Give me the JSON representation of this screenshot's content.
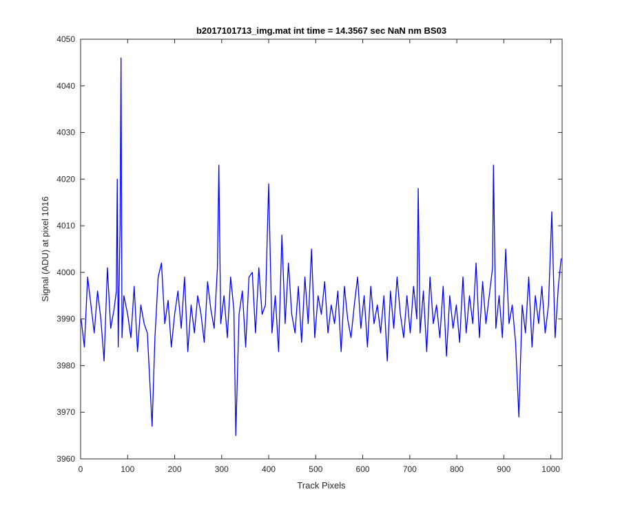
{
  "chart_data": {
    "type": "line",
    "title": "b2017101713_img.mat int time = 14.3567 sec  NaN nm BS03",
    "xlabel": "Track Pixels",
    "ylabel": "Signal (ADU) at pixel 1016",
    "xlim": [
      0,
      1024
    ],
    "ylim": [
      3960,
      4050
    ],
    "xticks": [
      0,
      100,
      200,
      300,
      400,
      500,
      600,
      700,
      800,
      900,
      1000
    ],
    "yticks": [
      3960,
      3970,
      3980,
      3990,
      4000,
      4010,
      4020,
      4030,
      4040,
      4050
    ],
    "xtick_labels": [
      "0",
      "100",
      "200",
      "300",
      "400",
      "500",
      "600",
      "700",
      "800",
      "900",
      "1000"
    ],
    "ytick_labels": [
      "3960",
      "3970",
      "3980",
      "3990",
      "4000",
      "4010",
      "4020",
      "4030",
      "4040",
      "4050"
    ],
    "grid": false,
    "series": [
      {
        "color": "#0000ff",
        "x": [
          1,
          8,
          15,
          22,
          29,
          36,
          43,
          50,
          57,
          64,
          71,
          76,
          78,
          80,
          84,
          86,
          88,
          92,
          100,
          107,
          114,
          121,
          128,
          135,
          142,
          149,
          152,
          158,
          165,
          172,
          179,
          186,
          193,
          200,
          207,
          214,
          221,
          228,
          235,
          242,
          249,
          256,
          263,
          270,
          277,
          284,
          291,
          294,
          298,
          305,
          312,
          319,
          326,
          330,
          337,
          344,
          351,
          358,
          365,
          372,
          379,
          386,
          393,
          400,
          407,
          414,
          421,
          428,
          435,
          442,
          449,
          456,
          463,
          470,
          477,
          484,
          491,
          498,
          505,
          512,
          519,
          526,
          533,
          540,
          547,
          554,
          561,
          568,
          575,
          582,
          589,
          596,
          603,
          610,
          617,
          624,
          631,
          638,
          645,
          652,
          659,
          666,
          673,
          680,
          687,
          694,
          701,
          708,
          715,
          718,
          722,
          729,
          736,
          743,
          750,
          757,
          764,
          771,
          778,
          785,
          792,
          799,
          806,
          813,
          820,
          827,
          834,
          841,
          848,
          855,
          862,
          869,
          876,
          878,
          883,
          890,
          897,
          904,
          911,
          918,
          925,
          932,
          939,
          946,
          953,
          960,
          967,
          974,
          981,
          988,
          995,
          1002,
          1009,
          1016,
          1022
        ],
        "y": [
          3990,
          3984,
          3999,
          3993,
          3987,
          3996,
          3990,
          3981,
          4001,
          3988,
          3992,
          3996,
          4020,
          3984,
          4010,
          4046,
          3986,
          3995,
          3991,
          3986,
          3997,
          3983,
          3993,
          3989,
          3987,
          3973,
          3967,
          3986,
          3999,
          4002,
          3989,
          3994,
          3984,
          3991,
          3996,
          3988,
          3999,
          3983,
          3993,
          3987,
          3995,
          3991,
          3985,
          3998,
          3992,
          3988,
          4001,
          4023,
          3989,
          3995,
          3986,
          3999,
          3992,
          3965,
          3991,
          3996,
          3984,
          3999,
          4000,
          3987,
          4001,
          3991,
          3993,
          4019,
          3987,
          3995,
          3983,
          4008,
          3989,
          4002,
          3991,
          3987,
          3997,
          3985,
          3999,
          3989,
          4005,
          3986,
          3995,
          3991,
          3998,
          3987,
          3993,
          3989,
          3996,
          3983,
          3997,
          3990,
          3986,
          3993,
          3999,
          3988,
          3995,
          3984,
          3997,
          3989,
          3993,
          3987,
          3995,
          3981,
          3996,
          3988,
          3999,
          3991,
          3986,
          3995,
          3987,
          3997,
          3990,
          4018,
          3987,
          3996,
          3983,
          3999,
          3989,
          3993,
          3986,
          3997,
          3982,
          3995,
          3988,
          3993,
          3985,
          3999,
          3987,
          3995,
          3989,
          4002,
          3986,
          3998,
          3989,
          3995,
          4001,
          4023,
          3988,
          3995,
          3986,
          4005,
          3989,
          3993,
          3985,
          3969,
          3993,
          3987,
          3999,
          3984,
          3995,
          3989,
          3997,
          3987,
          3993,
          4013,
          3986,
          3997,
          4003
        ]
      }
    ]
  }
}
